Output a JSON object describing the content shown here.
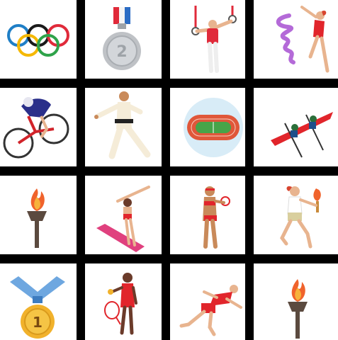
{
  "grid": {
    "tiles": [
      {
        "icon": "olympic-rings-icon"
      },
      {
        "icon": "silver-medal-icon",
        "label": "2"
      },
      {
        "icon": "gymnast-rings-icon"
      },
      {
        "icon": "rhythmic-gymnast-ribbon-icon"
      },
      {
        "icon": "track-cyclist-icon"
      },
      {
        "icon": "karate-fighter-icon"
      },
      {
        "icon": "athletics-stadium-icon"
      },
      {
        "icon": "rowing-boat-icon"
      },
      {
        "icon": "olympic-torch-icon"
      },
      {
        "icon": "diver-springboard-icon"
      },
      {
        "icon": "beach-volleyball-player-icon"
      },
      {
        "icon": "torch-bearer-runner-icon"
      },
      {
        "icon": "gold-medal-icon",
        "label": "1"
      },
      {
        "icon": "tennis-player-icon"
      },
      {
        "icon": "sprinter-icon"
      },
      {
        "icon": "olympic-torch-icon"
      }
    ],
    "colors": {
      "ring_blue": "#1f7fc6",
      "ring_yellow": "#f5b800",
      "ring_black": "#1a1a1a",
      "ring_green": "#2ea34a",
      "ring_red": "#e02a3a",
      "silver": "#bfc2c6",
      "gold": "#f1b22c",
      "ribbon_blue": "#6ea7e0",
      "flame": "#f0632c",
      "red_accent": "#e1252b"
    }
  }
}
